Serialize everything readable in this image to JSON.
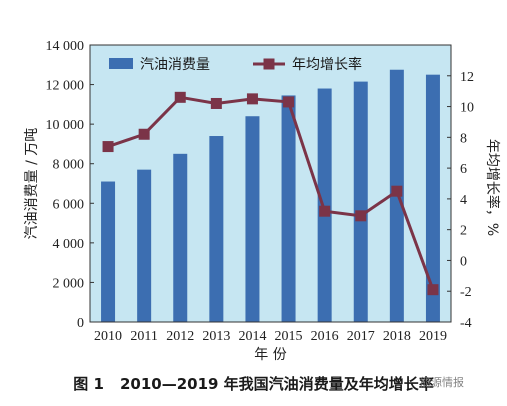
{
  "chart_data": {
    "type": "bar",
    "categories": [
      "2010",
      "2011",
      "2012",
      "2013",
      "2014",
      "2015",
      "2016",
      "2017",
      "2018",
      "2019"
    ],
    "series": [
      {
        "name": "汽油消费量",
        "type": "bar",
        "axis": "left",
        "values": [
          7100,
          7700,
          8500,
          9400,
          10400,
          11450,
          11800,
          12150,
          12750,
          12500
        ]
      },
      {
        "name": "年均增长率",
        "type": "line",
        "axis": "right",
        "values": [
          7.4,
          8.2,
          10.6,
          10.2,
          10.5,
          10.3,
          3.2,
          2.9,
          4.5,
          -1.9
        ]
      }
    ],
    "xlabel": "年  份",
    "ylabel": "汽油消费量 / 万吨",
    "y2label": "年均增长率，%",
    "ylim": [
      0,
      14000
    ],
    "y2lim": [
      -4,
      14
    ],
    "y_ticks": [
      0,
      2000,
      4000,
      6000,
      8000,
      10000,
      12000,
      14000
    ],
    "y_tick_labels": [
      "0",
      "2 000",
      "4 000",
      "6 000",
      "8 000",
      "10 000",
      "12 000",
      "14 000"
    ],
    "y2_ticks": [
      -4,
      -2,
      0,
      2,
      4,
      6,
      8,
      10,
      12
    ],
    "y2_tick_labels": [
      "-4",
      "-2",
      "0",
      "2",
      "4",
      "6",
      "8",
      "10",
      "12"
    ],
    "legend_position": "top",
    "grid": false,
    "colors": {
      "bar": "#3c6eb1",
      "line": "#7b3448",
      "plot_bg": "#c6e6f2",
      "axis": "#333333"
    }
  },
  "caption": {
    "number": "图 1",
    "text": "2010—2019 年我国汽油消费量及年均增长率"
  },
  "watermark": "能源情报"
}
